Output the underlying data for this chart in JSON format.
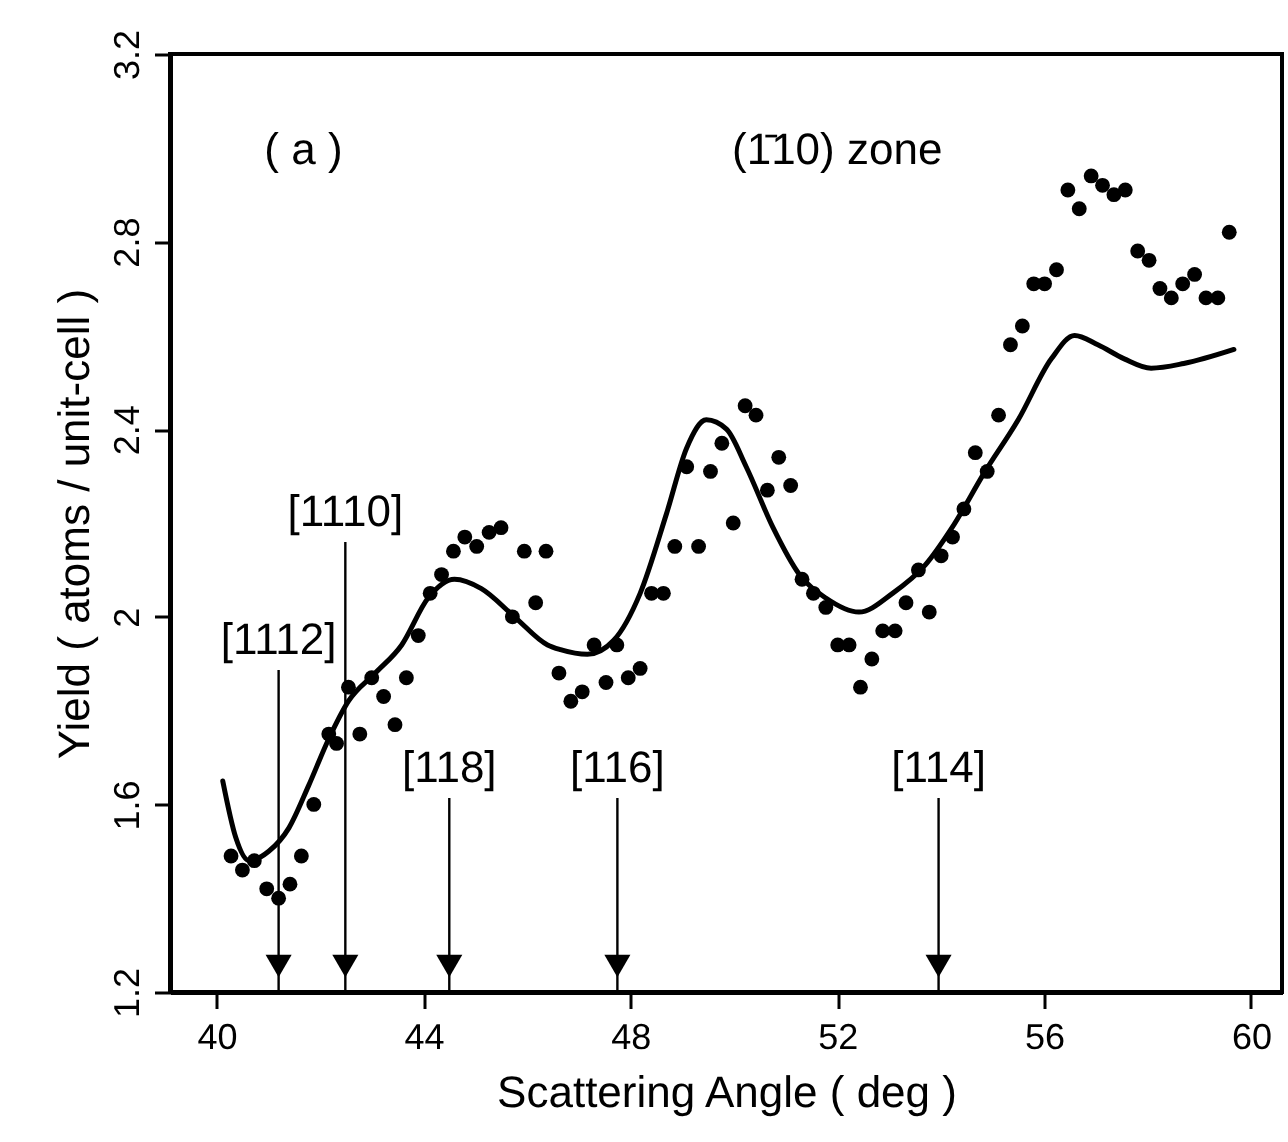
{
  "chart_data": {
    "type": "scatter",
    "xlabel": "Scattering Angle ( deg )",
    "ylabel": "Yield ( atoms / unit-cell )",
    "xlim": [
      39.1,
      60.6
    ],
    "xticks": [
      40,
      44,
      48,
      52,
      56,
      60
    ],
    "ylim": [
      1.2,
      3.2
    ],
    "yticks": [
      1.2,
      1.6,
      2,
      2.4,
      2.8,
      3.2
    ],
    "annotations": [
      "( a )",
      "(1̄10) zone",
      {
        "text": "[1112]",
        "x": 41.2
      },
      {
        "text": "[1110]",
        "x": 42.49
      },
      {
        "text": "[118]",
        "x": 44.5
      },
      {
        "text": "[116]",
        "x": 47.75
      },
      {
        "text": "[114]",
        "x": 53.96
      }
    ],
    "series": [
      {
        "marker": "circle",
        "color": "#000000",
        "x": [
          40.28,
          40.5,
          40.73,
          40.97,
          41.2,
          41.42,
          41.64,
          41.88,
          42.17,
          42.32,
          42.55,
          42.77,
          43.0,
          43.23,
          43.45,
          43.67,
          43.9,
          44.13,
          44.35,
          44.58,
          44.8,
          45.03,
          45.27,
          45.5,
          45.72,
          45.95,
          46.17,
          46.37,
          46.62,
          46.85,
          47.07,
          47.3,
          47.53,
          47.74,
          47.96,
          48.19,
          48.41,
          48.64,
          48.86,
          49.09,
          49.32,
          49.55,
          49.77,
          49.99,
          50.22,
          50.43,
          50.65,
          50.87,
          51.1,
          51.32,
          51.54,
          51.78,
          52.01,
          52.23,
          52.45,
          52.67,
          52.88,
          53.12,
          53.33,
          53.57,
          53.78,
          54.01,
          54.23,
          54.45,
          54.67,
          54.9,
          55.12,
          55.35,
          55.58,
          55.8,
          56.01,
          56.24,
          56.46,
          56.68,
          56.91,
          57.13,
          57.35,
          57.57,
          57.81,
          58.03,
          58.24,
          58.46,
          58.68,
          58.91,
          59.13,
          59.36,
          59.58
        ],
        "values": [
          1.49,
          1.46,
          1.48,
          1.42,
          1.4,
          1.43,
          1.49,
          1.6,
          1.75,
          1.73,
          1.85,
          1.75,
          1.87,
          1.83,
          1.77,
          1.87,
          1.96,
          2.05,
          2.09,
          2.14,
          2.17,
          2.15,
          2.18,
          2.19,
          2.0,
          2.14,
          2.03,
          2.14,
          1.88,
          1.82,
          1.84,
          1.94,
          1.86,
          1.94,
          1.87,
          1.89,
          2.05,
          2.05,
          2.15,
          2.32,
          2.15,
          2.31,
          2.37,
          2.2,
          2.45,
          2.43,
          2.27,
          2.34,
          2.28,
          2.08,
          2.05,
          2.02,
          1.94,
          1.94,
          1.85,
          1.91,
          1.97,
          1.97,
          2.03,
          2.1,
          2.01,
          2.13,
          2.17,
          2.23,
          2.35,
          2.31,
          2.43,
          2.58,
          2.62,
          2.71,
          2.71,
          2.74,
          2.91,
          2.87,
          2.94,
          2.92,
          2.9,
          2.91,
          2.78,
          2.76,
          2.7,
          2.68,
          2.71,
          2.73,
          2.68,
          2.68,
          2.82
        ]
      },
      {
        "type": "line",
        "color": "#000000",
        "x": [
          40.12,
          40.37,
          40.63,
          41.01,
          41.4,
          41.78,
          42.17,
          42.55,
          43.07,
          43.58,
          44.09,
          44.6,
          45.12,
          45.76,
          46.4,
          46.65,
          47.17,
          47.68,
          48.19,
          48.7,
          49.09,
          49.47,
          49.86,
          50.24,
          50.76,
          51.27,
          51.78,
          52.42,
          53.07,
          53.7,
          54.22,
          54.86,
          55.5,
          56.14,
          56.59,
          57.04,
          57.55,
          58.07,
          58.7,
          59.67
        ],
        "values": [
          1.65,
          1.53,
          1.48,
          1.5,
          1.55,
          1.64,
          1.74,
          1.82,
          1.88,
          1.94,
          2.04,
          2.08,
          2.06,
          2.0,
          1.94,
          1.93,
          1.92,
          1.95,
          2.05,
          2.22,
          2.36,
          2.42,
          2.4,
          2.32,
          2.19,
          2.09,
          2.04,
          2.01,
          2.05,
          2.11,
          2.19,
          2.31,
          2.42,
          2.55,
          2.6,
          2.58,
          2.55,
          2.53,
          2.54,
          2.57
        ]
      }
    ]
  }
}
